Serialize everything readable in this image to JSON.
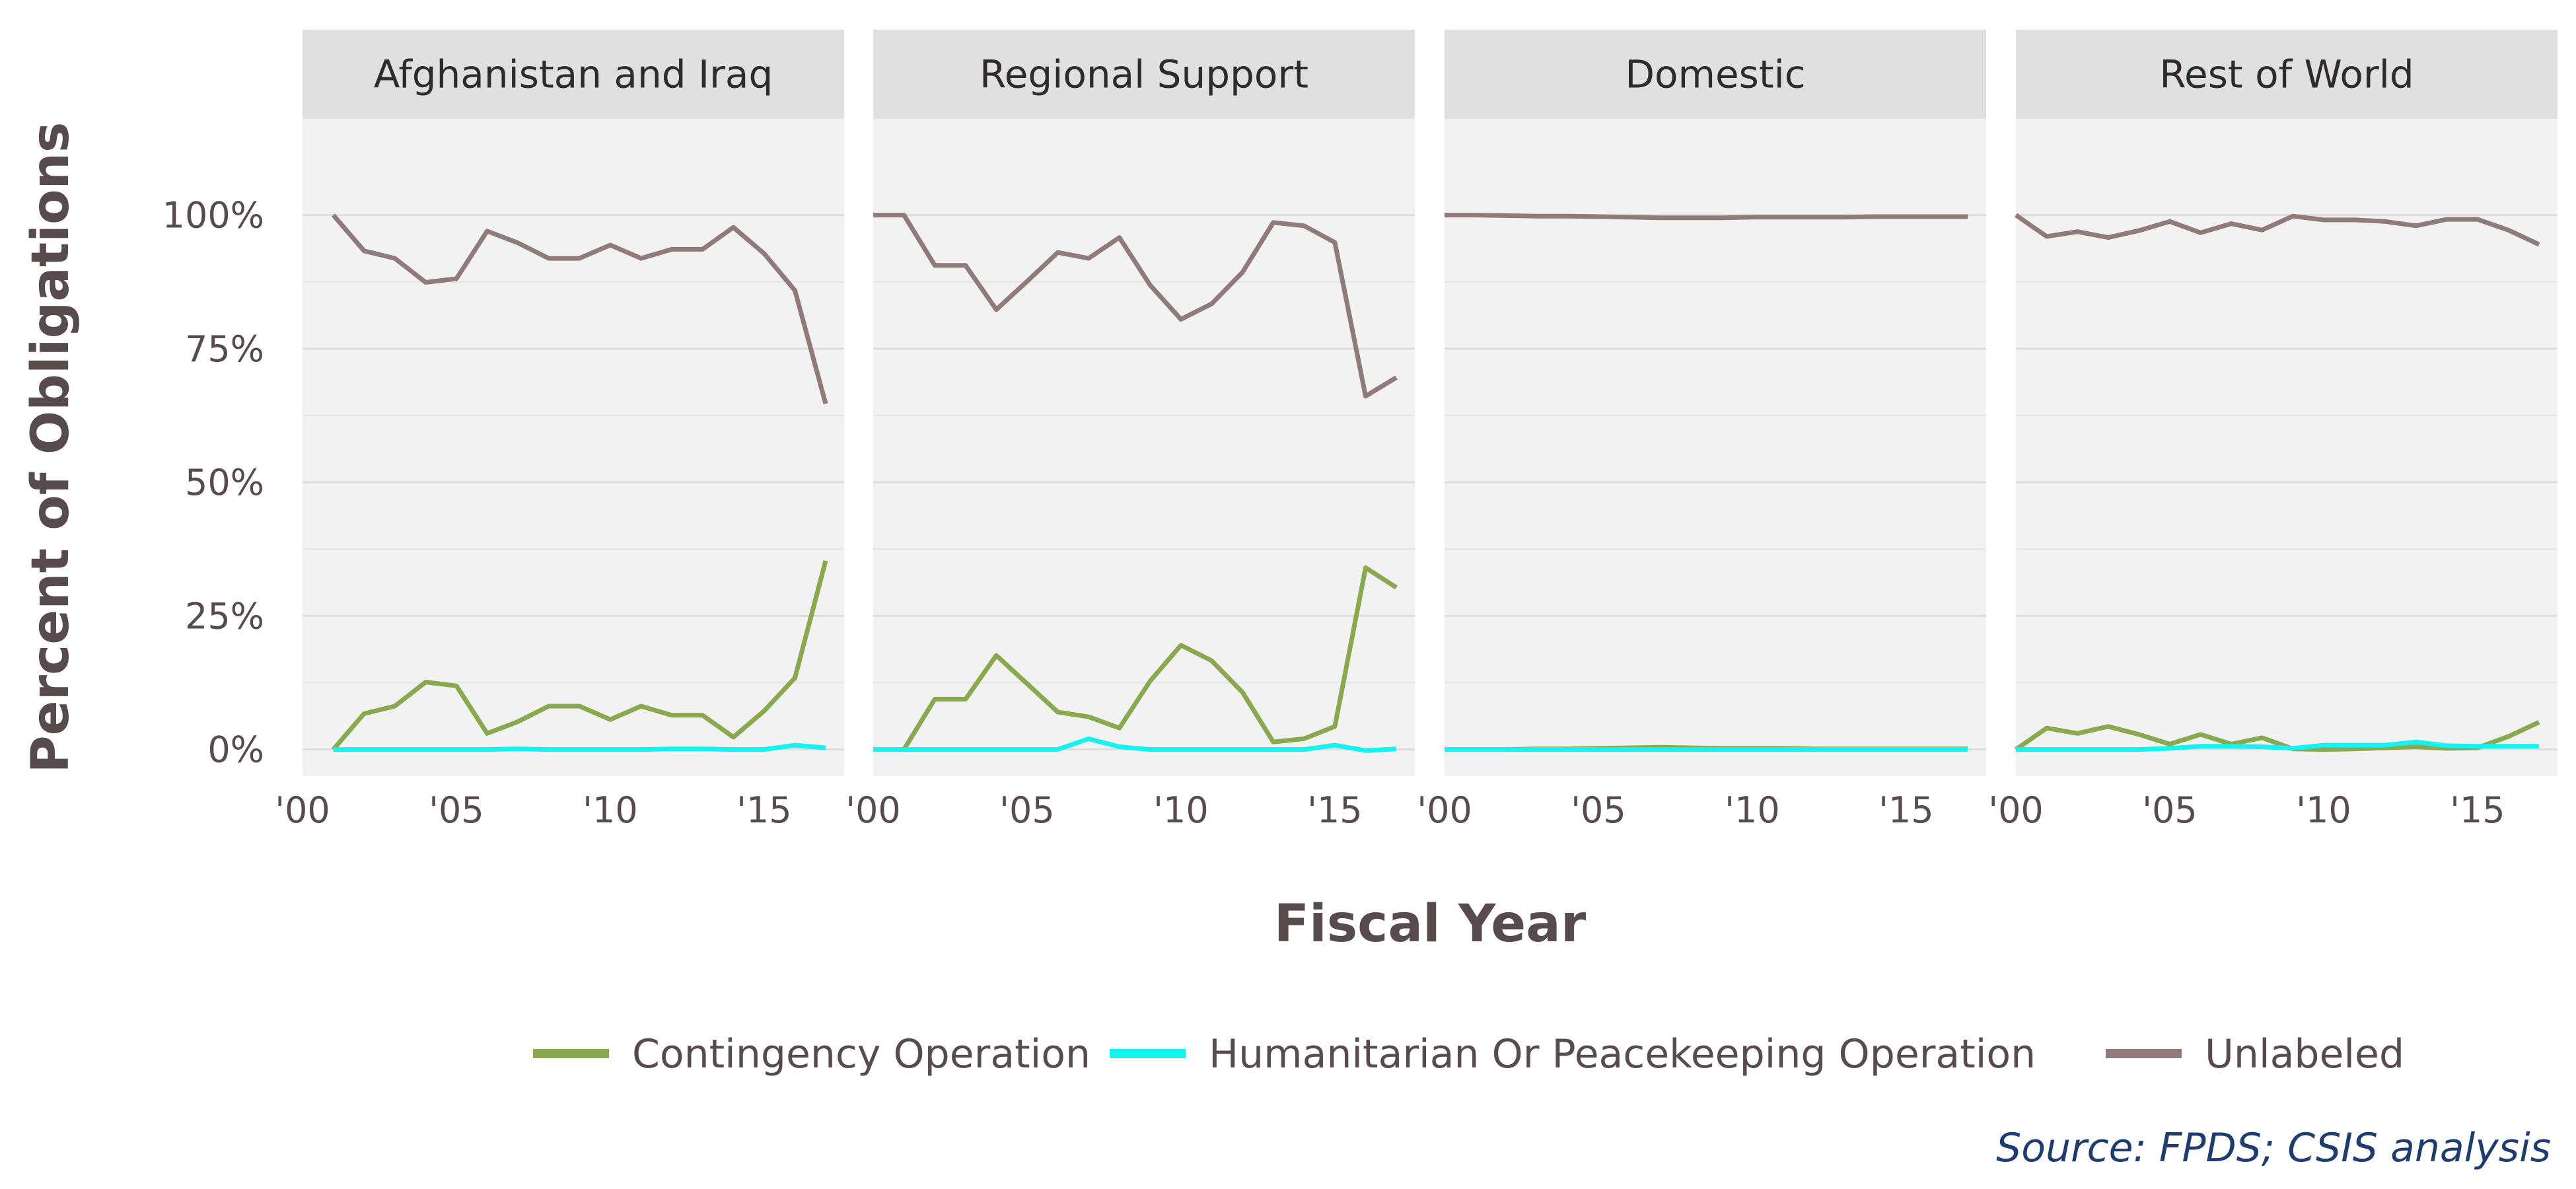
{
  "chart_data": {
    "type": "line",
    "facet_by": "region",
    "ylabel": "Percent of Obligations",
    "xlabel": "Fiscal Year",
    "ylim": [
      -5,
      118
    ],
    "xlim": [
      2000,
      2017.6
    ],
    "y_ticks": [
      0,
      25,
      50,
      75,
      100
    ],
    "y_tick_labels": [
      "0%",
      "25%",
      "50%",
      "75%",
      "100%"
    ],
    "x_ticks": [
      2000,
      2005,
      2010,
      2015
    ],
    "x_tick_labels": [
      "'00",
      "'05",
      "'10",
      "'15"
    ],
    "grid": true,
    "legend_position": "bottom",
    "legend": [
      {
        "name": "Contingency Operation",
        "color": "#88a94e"
      },
      {
        "name": "Humanitarian Or Peacekeeping Operation",
        "color": "#16f2f2"
      },
      {
        "name": "Unlabeled",
        "color": "#917a7a"
      }
    ],
    "source": "Source: FPDS; CSIS analysis",
    "panels": [
      {
        "title": "Afghanistan and Iraq",
        "series": [
          {
            "name": "Unlabeled",
            "x": [
              2001,
              2002,
              2003,
              2004,
              2005,
              2006,
              2007,
              2008,
              2009,
              2010,
              2011,
              2012,
              2013,
              2014,
              2015,
              2016,
              2017
            ],
            "values": [
              100,
              93.3,
              91.9,
              87.4,
              88.1,
              97,
              94.8,
              91.9,
              91.9,
              94.4,
              91.9,
              93.6,
              93.6,
              97.7,
              92.8,
              85.9,
              64.7
            ]
          },
          {
            "name": "Contingency Operation",
            "x": [
              2001,
              2002,
              2003,
              2004,
              2005,
              2006,
              2007,
              2008,
              2009,
              2010,
              2011,
              2012,
              2013,
              2014,
              2015,
              2016,
              2017
            ],
            "values": [
              0,
              6.7,
              8.1,
              12.6,
              11.9,
              3,
              5.2,
              8.1,
              8.1,
              5.6,
              8.1,
              6.4,
              6.4,
              2.3,
              7.2,
              13.4,
              35.3
            ]
          },
          {
            "name": "Humanitarian Or Peacekeeping Operation",
            "x": [
              2001,
              2002,
              2003,
              2004,
              2005,
              2006,
              2007,
              2008,
              2009,
              2010,
              2011,
              2012,
              2013,
              2014,
              2015,
              2016,
              2017
            ],
            "values": [
              0,
              0,
              0,
              0,
              0,
              0,
              0.1,
              0,
              0,
              0,
              0,
              0.1,
              0.1,
              0,
              0,
              0.8,
              0.3
            ]
          }
        ]
      },
      {
        "title": "Regional Support",
        "series": [
          {
            "name": "Unlabeled",
            "x": [
              2000,
              2001,
              2002,
              2003,
              2004,
              2005,
              2006,
              2007,
              2008,
              2009,
              2010,
              2011,
              2012,
              2013,
              2014,
              2015,
              2016,
              2017
            ],
            "values": [
              100,
              100,
              90.6,
              90.6,
              82.3,
              87.6,
              93,
              91.9,
              95.8,
              86.9,
              80.5,
              83.4,
              89.3,
              98.6,
              98,
              94.9,
              66.1,
              69.6
            ]
          },
          {
            "name": "Contingency Operation",
            "x": [
              2000,
              2001,
              2002,
              2003,
              2004,
              2005,
              2006,
              2007,
              2008,
              2009,
              2010,
              2011,
              2012,
              2013,
              2014,
              2015,
              2016,
              2017
            ],
            "values": [
              0,
              0,
              9.4,
              9.4,
              17.6,
              12.3,
              7,
              6.1,
              4,
              12.8,
              19.5,
              16.6,
              10.7,
              1.4,
              2,
              4.3,
              34,
              30.3
            ]
          },
          {
            "name": "Humanitarian Or Peacekeeping Operation",
            "x": [
              2000,
              2001,
              2002,
              2003,
              2004,
              2005,
              2006,
              2007,
              2008,
              2009,
              2010,
              2011,
              2012,
              2013,
              2014,
              2015,
              2016,
              2017
            ],
            "values": [
              0,
              0,
              0,
              0,
              0,
              0,
              0,
              2,
              0.5,
              0,
              0,
              0,
              0,
              0,
              0,
              0.8,
              -0.2,
              0.1
            ]
          }
        ]
      },
      {
        "title": "Domestic",
        "series": [
          {
            "name": "Unlabeled",
            "x": [
              2000,
              2001,
              2002,
              2003,
              2004,
              2005,
              2006,
              2007,
              2008,
              2009,
              2010,
              2011,
              2012,
              2013,
              2014,
              2015,
              2016,
              2017
            ],
            "values": [
              100,
              100,
              99.9,
              99.8,
              99.8,
              99.7,
              99.6,
              99.5,
              99.5,
              99.5,
              99.6,
              99.6,
              99.6,
              99.6,
              99.7,
              99.7,
              99.7,
              99.7
            ]
          },
          {
            "name": "Contingency Operation",
            "x": [
              2000,
              2001,
              2002,
              2003,
              2004,
              2005,
              2006,
              2007,
              2008,
              2009,
              2010,
              2011,
              2012,
              2013,
              2014,
              2015,
              2016,
              2017
            ],
            "values": [
              0,
              0,
              0,
              0.1,
              0.1,
              0.2,
              0.3,
              0.4,
              0.3,
              0.2,
              0.2,
              0.2,
              0.1,
              0.1,
              0.1,
              0.1,
              0.1,
              0.1
            ]
          },
          {
            "name": "Humanitarian Or Peacekeeping Operation",
            "x": [
              2000,
              2001,
              2002,
              2003,
              2004,
              2005,
              2006,
              2007,
              2008,
              2009,
              2010,
              2011,
              2012,
              2013,
              2014,
              2015,
              2016,
              2017
            ],
            "values": [
              0,
              0,
              0,
              0,
              0,
              0,
              0,
              0,
              0,
              0,
              0,
              0,
              0,
              0,
              0,
              0,
              0,
              0
            ]
          }
        ]
      },
      {
        "title": "Rest of World",
        "series": [
          {
            "name": "Unlabeled",
            "x": [
              2000,
              2001,
              2002,
              2003,
              2004,
              2005,
              2006,
              2007,
              2008,
              2009,
              2010,
              2011,
              2012,
              2013,
              2014,
              2015,
              2016,
              2017
            ],
            "values": [
              100,
              96,
              96.9,
              95.8,
              97.1,
              98.8,
              96.7,
              98.4,
              97.2,
              99.8,
              99.1,
              99.1,
              98.8,
              98,
              99.2,
              99.2,
              97.2,
              94.5
            ]
          },
          {
            "name": "Contingency Operation",
            "x": [
              2000,
              2001,
              2002,
              2003,
              2004,
              2005,
              2006,
              2007,
              2008,
              2009,
              2010,
              2011,
              2012,
              2013,
              2014,
              2015,
              2016,
              2017
            ],
            "values": [
              0,
              4,
              3,
              4.3,
              2.8,
              1,
              2.8,
              1,
              2.2,
              0.1,
              0,
              0.1,
              0.3,
              0.5,
              0.2,
              0.3,
              2.4,
              5.1
            ]
          },
          {
            "name": "Humanitarian Or Peacekeeping Operation",
            "x": [
              2000,
              2001,
              2002,
              2003,
              2004,
              2005,
              2006,
              2007,
              2008,
              2009,
              2010,
              2011,
              2012,
              2013,
              2014,
              2015,
              2016,
              2017
            ],
            "values": [
              0,
              0,
              0,
              0,
              0,
              0.2,
              0.6,
              0.6,
              0.5,
              0.2,
              0.8,
              0.8,
              0.8,
              1.4,
              0.7,
              0.6,
              0.6,
              0.6
            ]
          }
        ]
      }
    ]
  }
}
